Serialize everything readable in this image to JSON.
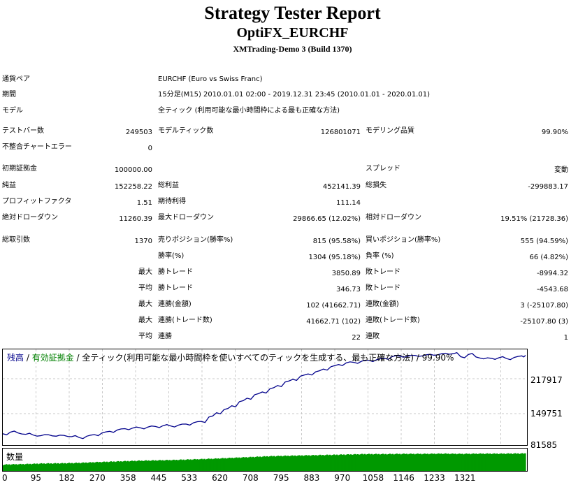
{
  "header": {
    "title": "Strategy Tester Report",
    "subtitle": "OptiFX_EURCHF",
    "build": "XMTrading-Demo 3 (Build 1370)"
  },
  "info": {
    "pair_label": "通貨ペア",
    "pair_value": "EURCHF (Euro vs Swiss Franc)",
    "period_label": "期間",
    "period_value": "15分足(M15) 2010.01.01 02:00 - 2019.12.31 23:45 (2010.01.01 - 2020.01.01)",
    "model_label": "モデル",
    "model_value": "全ティック (利用可能な最小時間枠による最も正確な方法)"
  },
  "stats": {
    "bars_label": "テストバー数",
    "bars_value": "249503",
    "ticks_label": "モデルティック数",
    "ticks_value": "126801071",
    "quality_label": "モデリング品質",
    "quality_value": "99.90%",
    "mismatch_label": "不整合チャートエラー",
    "mismatch_value": "0",
    "deposit_label": "初期証拠金",
    "deposit_value": "100000.00",
    "spread_label": "スプレッド",
    "spread_value": "変動",
    "net_label": "純益",
    "net_value": "152258.22",
    "gross_profit_label": "総利益",
    "gross_profit_value": "452141.39",
    "gross_loss_label": "総損失",
    "gross_loss_value": "-299883.17",
    "pf_label": "プロフィットファクタ",
    "pf_value": "1.51",
    "expected_label": "期待利得",
    "expected_value": "111.14",
    "abs_dd_label": "絶対ドローダウン",
    "abs_dd_value": "11260.39",
    "max_dd_label": "最大ドローダウン",
    "max_dd_value": "29866.65 (12.02%)",
    "rel_dd_label": "相対ドローダウン",
    "rel_dd_value": "19.51% (21728.36)",
    "trades_label": "総取引数",
    "trades_value": "1370",
    "short_label": "売りポジション(勝率%)",
    "short_value": "815 (95.58%)",
    "long_label": "買いポジション(勝率%)",
    "long_value": "555 (94.59%)",
    "win_pct_label": "勝率(%)",
    "win_pct_value": "1304 (95.18%)",
    "loss_pct_label": "負率 (%)",
    "loss_pct_value": "66 (4.82%)",
    "max1": "最大",
    "max_win_label": "勝トレード",
    "max_win_value": "3850.89",
    "max_loss_label": "敗トレード",
    "max_loss_value": "-8994.32",
    "avg1": "平均",
    "avg_win_label": "勝トレード",
    "avg_win_value": "346.73",
    "avg_loss_label": "敗トレード",
    "avg_loss_value": "-4543.68",
    "max2": "最大",
    "cons_win_amt_label": "連勝(金額)",
    "cons_win_amt_value": "102 (41662.71)",
    "cons_loss_amt_label": "連敗(金額)",
    "cons_loss_amt_value": "3 (-25107.80)",
    "max3": "最大",
    "cons_win_cnt_label": "連勝(トレード数)",
    "cons_win_cnt_value": "41662.71 (102)",
    "cons_loss_cnt_label": "連敗(トレード数)",
    "cons_loss_cnt_value": "-25107.80 (3)",
    "avg2": "平均",
    "avg_cons_win_label": "連勝",
    "avg_cons_win_value": "22",
    "avg_cons_loss_label": "連敗",
    "avg_cons_loss_value": "1"
  },
  "chart_legend": {
    "balance": "残高",
    "sep1": " / ",
    "equity": "有効証拠金",
    "rest": " / 全ティック(利用可能な最小時間枠を使いすべてのティックを生成する、最も正確な方法) / 99.90%",
    "balance_color": "#00008b",
    "equity_color": "#008000"
  },
  "volume_label": "数量",
  "chart_data": {
    "type": "line",
    "ylim": [
      81585,
      254000
    ],
    "yticks": [
      "217917",
      "149751",
      "81585"
    ],
    "xticks": [
      "0",
      "95",
      "182",
      "270",
      "358",
      "445",
      "533",
      "620",
      "708",
      "795",
      "883",
      "970",
      "1058",
      "1146",
      "1233",
      "1321"
    ],
    "series": [
      {
        "name": "残高",
        "color": "#00008b",
        "x": [
          0,
          20,
          40,
          60,
          80,
          100,
          120,
          140,
          160,
          180,
          200,
          220,
          240,
          260,
          280,
          300,
          320,
          340,
          360,
          380,
          400,
          420,
          440,
          460,
          480,
          500,
          520,
          540,
          560,
          580,
          600,
          620,
          640,
          660,
          680,
          700,
          720,
          740,
          760,
          780,
          800,
          820,
          840,
          860,
          880,
          900,
          920,
          940,
          960,
          980,
          1000,
          1020,
          1040,
          1060,
          1080,
          1100,
          1120,
          1140,
          1160,
          1180,
          1200,
          1220,
          1240,
          1260,
          1280,
          1300,
          1320,
          1340,
          1360,
          1370
        ],
        "values": [
          100000,
          103000,
          101500,
          99000,
          97500,
          96500,
          98000,
          95500,
          97000,
          94500,
          93000,
          95500,
          98500,
          101500,
          104500,
          107000,
          109500,
          110500,
          111000,
          112500,
          113500,
          115000,
          114500,
          116000,
          118000,
          120500,
          123000,
          131000,
          139000,
          145000,
          152000,
          159500,
          166000,
          172500,
          177500,
          183500,
          189500,
          196000,
          201000,
          207000,
          211000,
          215000,
          220000,
          224500,
          228500,
          231500,
          232500,
          234500,
          236000,
          237500,
          240000,
          243000,
          244000,
          243500,
          245500,
          244500,
          247500,
          246500,
          249500,
          248500,
          243000,
          247000,
          242500,
          239000,
          240000,
          241000,
          239500,
          241500,
          244500,
          245500
        ]
      },
      {
        "name": "有効証拠金",
        "color": "#008000",
        "x": [
          0,
          1370
        ],
        "values": [
          100000,
          245500
        ]
      }
    ],
    "volume": {
      "name": "数量",
      "color": "#009900",
      "x": [
        0,
        50,
        100,
        150,
        200,
        250,
        300,
        350,
        400,
        450,
        500,
        550,
        600,
        650,
        700,
        750,
        800,
        850,
        900,
        950,
        1000,
        1050,
        1100,
        1150,
        1200,
        1250,
        1300,
        1370
      ],
      "values": [
        0.3,
        0.32,
        0.35,
        0.36,
        0.38,
        0.42,
        0.45,
        0.48,
        0.5,
        0.52,
        0.55,
        0.58,
        0.62,
        0.66,
        0.7,
        0.72,
        0.74,
        0.76,
        0.78,
        0.8,
        0.8,
        0.81,
        0.81,
        0.82,
        0.81,
        0.82,
        0.82,
        0.83
      ]
    }
  }
}
